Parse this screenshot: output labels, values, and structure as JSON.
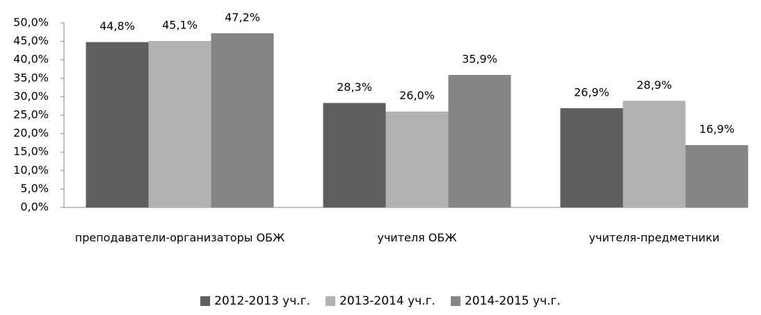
{
  "chart_data": {
    "type": "bar",
    "categories": [
      "преподаватели-организаторы ОБЖ",
      "учителя ОБЖ",
      "учителя-предметники"
    ],
    "series": [
      {
        "name": "2012-2013 уч.г.",
        "color": "#5f5f5f",
        "values": [
          44.8,
          28.3,
          26.9
        ],
        "value_labels": [
          "44,8%",
          "28,3%",
          "26,9%"
        ]
      },
      {
        "name": "2013-2014 уч.г.",
        "color": "#b2b2b2",
        "values": [
          45.1,
          26.0,
          28.9
        ],
        "value_labels": [
          "45,1%",
          "26,0%",
          "28,9%"
        ]
      },
      {
        "name": "2014-2015 уч.г.",
        "color": "#858585",
        "values": [
          47.2,
          35.9,
          16.9
        ],
        "value_labels": [
          "47,2%",
          "35,9%",
          "16,9%"
        ]
      }
    ],
    "ylim": [
      0,
      50
    ],
    "yticks": [
      {
        "value": 0,
        "label": "0,0%"
      },
      {
        "value": 5,
        "label": "5,0%"
      },
      {
        "value": 10,
        "label": "10,0%"
      },
      {
        "value": 15,
        "label": "15,0%"
      },
      {
        "value": 20,
        "label": "20,0%"
      },
      {
        "value": 25,
        "label": "25,0%"
      },
      {
        "value": 30,
        "label": "30,0%"
      },
      {
        "value": 35,
        "label": "35,0%"
      },
      {
        "value": 40,
        "label": "40,0%"
      },
      {
        "value": 45,
        "label": "45,0%"
      },
      {
        "value": 50,
        "label": "50,0%"
      }
    ],
    "legend": "bottom"
  }
}
